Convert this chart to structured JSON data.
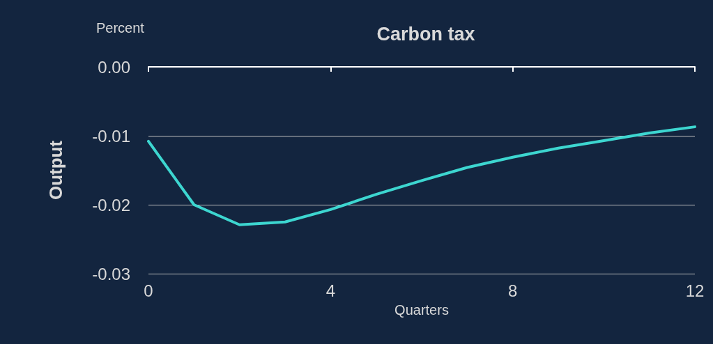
{
  "chart_data": {
    "type": "line",
    "title": "Carbon tax",
    "xlabel": "Quarters",
    "ylabel": "Output",
    "annotations": [
      "Percent"
    ],
    "x": [
      0,
      1,
      2,
      3,
      4,
      5,
      6,
      7,
      8,
      9,
      10,
      11,
      12
    ],
    "series": [
      {
        "color": "#3dd6d0",
        "values": [
          -0.0108,
          -0.02,
          -0.0229,
          -0.0225,
          -0.0207,
          -0.0185,
          -0.0165,
          -0.0146,
          -0.0131,
          -0.0118,
          -0.0107,
          -0.0096,
          -0.0087
        ]
      }
    ],
    "xlim": [
      0,
      12
    ],
    "xticks": [
      0,
      4,
      8,
      12
    ],
    "ylim": [
      -0.03,
      0
    ],
    "yticks": [
      {
        "value": 0,
        "label": "0.00"
      },
      -0.01,
      -0.02,
      -0.03
    ],
    "grid": "y",
    "marker": "none",
    "line_style": "solid"
  }
}
